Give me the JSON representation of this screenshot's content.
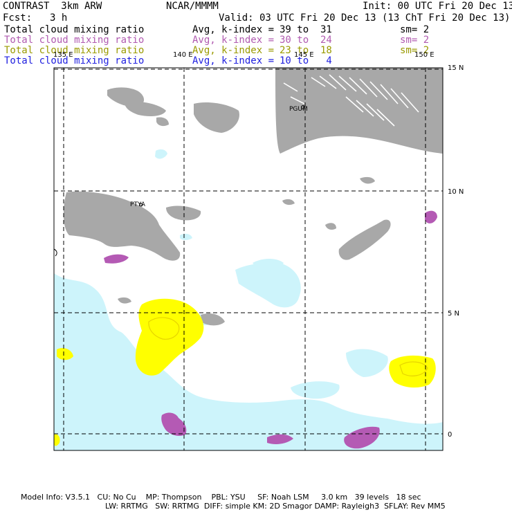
{
  "header": {
    "model": "CONTRAST  3km ARW",
    "center": "NCAR/MMMM",
    "init": "Init: 00 UTC Fri 20 Dec 13",
    "fcst_label": "Fcst:",
    "fcst_value": "3 h",
    "valid": "Valid: 03 UTC Fri 20 Dec 13 (13 ChT Fri 20 Dec 13)"
  },
  "legend": [
    {
      "field": "Total cloud mixing ratio",
      "stat": "Avg, k-index =",
      "range": "39 to  31",
      "sm": "sm= 2",
      "color": "#000000"
    },
    {
      "field": "Total cloud mixing ratio",
      "stat": "Avg, k-index =",
      "range": "30 to  24",
      "sm": "sm= 2",
      "color": "#b05ab0"
    },
    {
      "field": "Total cloud mixing ratio",
      "stat": "Avg, k-index =",
      "range": "23 to  18",
      "sm": "sm= 2",
      "color": "#9a9a00"
    },
    {
      "field": "Total cloud mixing ratio",
      "stat": "Avg, k-index =",
      "range": "10 to   4",
      "sm": "",
      "color": "#2020e0"
    }
  ],
  "map": {
    "lon_labels": [
      "135 E",
      "140 E",
      "145 E",
      "150 E"
    ],
    "lat_labels": [
      "15 N",
      "10 N",
      "5 N",
      "0"
    ],
    "stations": [
      "PGUM",
      "PTYA"
    ],
    "colors": {
      "gray_cloud": "#a8a8a8",
      "light_cloud": "#cdf4fb",
      "yellow_cloud": "#ffff00",
      "purple_cloud": "#b45ab4"
    }
  },
  "footer": {
    "line1": "Model Info: V3.5.1   CU: No Cu    MP: Thompson    PBL: YSU     SF: Noah LSM     3.0 km   39 levels   18 sec",
    "line2": "LW: RRTMG   SW: RRTMG  DIFF: simple KM: 2D Smagor DAMP: Rayleigh3  SFLAY: Rev MM5"
  }
}
